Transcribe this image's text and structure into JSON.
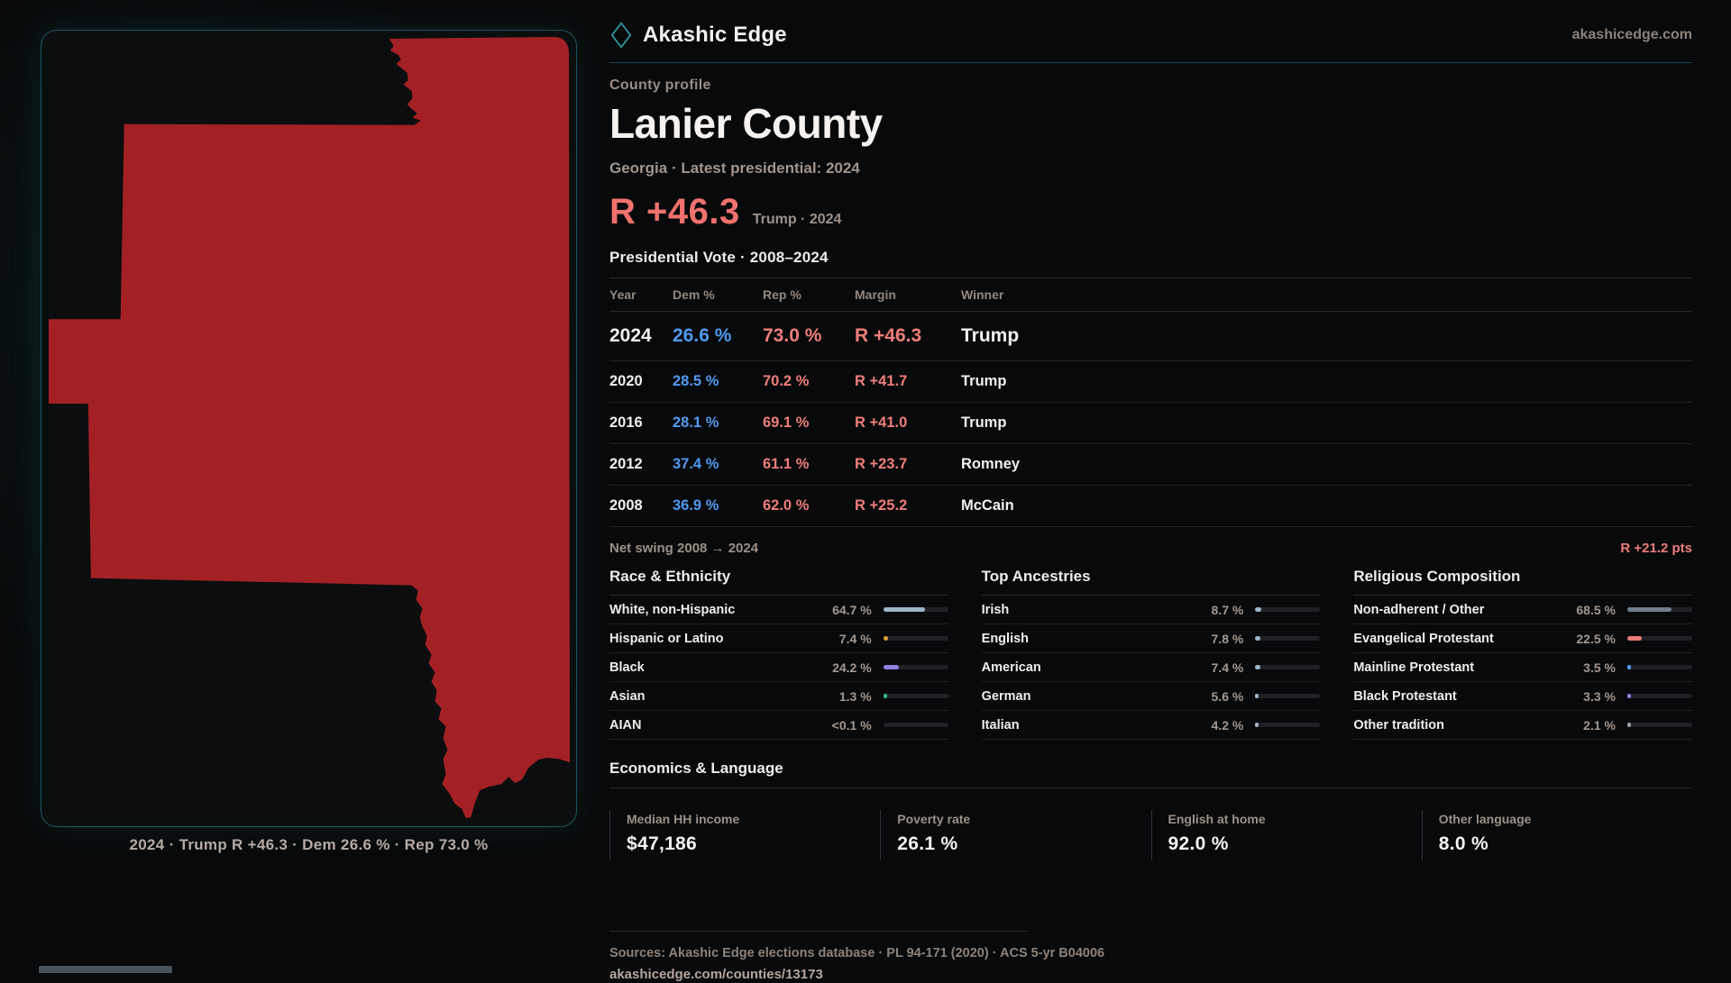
{
  "brand": {
    "name": "Akashic Edge",
    "domain": "akashicedge.com"
  },
  "header": {
    "eyebrow": "County profile",
    "title": "Lanier County",
    "subtitle": "Georgia · Latest presidential: 2024"
  },
  "headline": {
    "margin": "R +46.3",
    "context": "Trump · 2024"
  },
  "vote_table": {
    "title": "Presidential Vote · 2008–2024",
    "columns": [
      "Year",
      "Dem %",
      "Rep %",
      "Margin",
      "Winner"
    ],
    "rows": [
      {
        "year": "2024",
        "dem": "26.6 %",
        "rep": "73.0 %",
        "margin": "R +46.3",
        "winner": "Trump",
        "highlight": true
      },
      {
        "year": "2020",
        "dem": "28.5 %",
        "rep": "70.2 %",
        "margin": "R +41.7",
        "winner": "Trump",
        "highlight": false
      },
      {
        "year": "2016",
        "dem": "28.1 %",
        "rep": "69.1 %",
        "margin": "R +41.0",
        "winner": "Trump",
        "highlight": false
      },
      {
        "year": "2012",
        "dem": "37.4 %",
        "rep": "61.1 %",
        "margin": "R +23.7",
        "winner": "Romney",
        "highlight": false
      },
      {
        "year": "2008",
        "dem": "36.9 %",
        "rep": "62.0 %",
        "margin": "R +25.2",
        "winner": "McCain",
        "highlight": false
      }
    ],
    "net_swing_label": "Net swing 2008 → 2024",
    "net_swing_value": "R +21.2 pts"
  },
  "demographics": [
    {
      "title": "Race & Ethnicity",
      "rows": [
        {
          "label": "White, non-Hispanic",
          "value": "64.7 %",
          "pct": 64.7,
          "color": "#9cb5c9"
        },
        {
          "label": "Hispanic or Latino",
          "value": "7.4 %",
          "pct": 7.4,
          "color": "#e2a23b"
        },
        {
          "label": "Black",
          "value": "24.2 %",
          "pct": 24.2,
          "color": "#8f80e0"
        },
        {
          "label": "Asian",
          "value": "1.3 %",
          "pct": 1.3,
          "color": "#2fbd7f"
        },
        {
          "label": "AIAN",
          "value": "<0.1 %",
          "pct": 0,
          "color": "#9aa0a6"
        }
      ]
    },
    {
      "title": "Top Ancestries",
      "rows": [
        {
          "label": "Irish",
          "value": "8.7 %",
          "pct": 8.7,
          "color": "#9cb5c9"
        },
        {
          "label": "English",
          "value": "7.8 %",
          "pct": 7.8,
          "color": "#9cb5c9"
        },
        {
          "label": "American",
          "value": "7.4 %",
          "pct": 7.4,
          "color": "#9cb5c9"
        },
        {
          "label": "German",
          "value": "5.6 %",
          "pct": 5.6,
          "color": "#9cb5c9"
        },
        {
          "label": "Italian",
          "value": "4.2 %",
          "pct": 4.2,
          "color": "#9cb5c9"
        }
      ]
    },
    {
      "title": "Religious Composition",
      "rows": [
        {
          "label": "Non-adherent / Other",
          "value": "68.5 %",
          "pct": 68.5,
          "color": "#6f7d8d"
        },
        {
          "label": "Evangelical Protestant",
          "value": "22.5 %",
          "pct": 22.5,
          "color": "#ed7b78"
        },
        {
          "label": "Mainline Protestant",
          "value": "3.5 %",
          "pct": 3.5,
          "color": "#4f9af0"
        },
        {
          "label": "Black Protestant",
          "value": "3.3 %",
          "pct": 3.3,
          "color": "#8f80e0"
        },
        {
          "label": "Other tradition",
          "value": "2.1 %",
          "pct": 2.1,
          "color": "#9aa0a6"
        }
      ]
    }
  ],
  "economics": {
    "title": "Economics & Language",
    "stats": [
      {
        "label": "Median HH income",
        "value": "$47,186"
      },
      {
        "label": "Poverty rate",
        "value": "26.1 %"
      },
      {
        "label": "English at home",
        "value": "92.0 %"
      },
      {
        "label": "Other language",
        "value": "8.0 %"
      }
    ]
  },
  "map": {
    "caption": "2024 · Trump R +46.3 · Dem 26.6 % · Rep 73.0 %",
    "fill": "#a32125"
  },
  "footer": {
    "sources": "Sources: Akashic Edge elections database · PL 94-171 (2020) · ACS 5-yr B04006",
    "permalink": "akashicedge.com/counties/13173"
  },
  "colors": {
    "accent_coral": "#f0716d",
    "dem_blue": "#4f9af0",
    "teal_border": "#1b575e",
    "county_red": "#a32125"
  }
}
